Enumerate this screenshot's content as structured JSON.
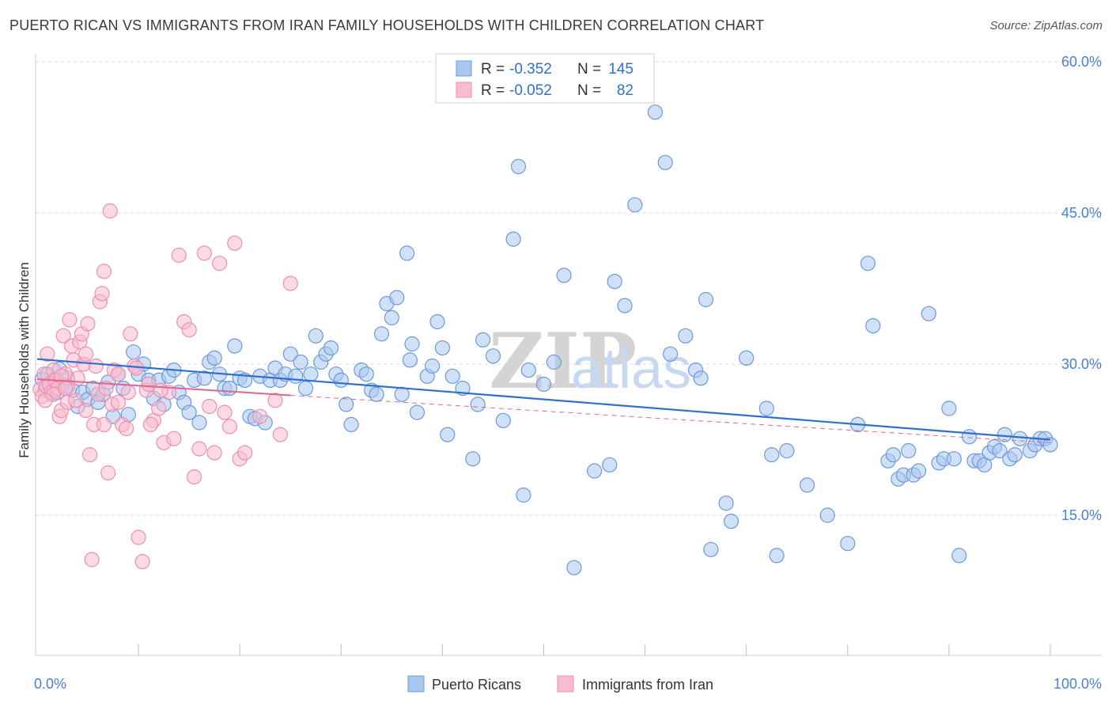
{
  "title": "PUERTO RICAN VS IMMIGRANTS FROM IRAN FAMILY HOUSEHOLDS WITH CHILDREN CORRELATION CHART",
  "source": "Source: ZipAtlas.com",
  "watermark": {
    "zip": "ZIP",
    "atlas": "atlas"
  },
  "legend_box": [
    {
      "r_label": "R =",
      "r_value": "-0.352",
      "n_label": "N =",
      "n_value": "145"
    },
    {
      "r_label": "R =",
      "r_value": "-0.052",
      "n_label": "N =",
      "n_value": "82"
    }
  ],
  "chart_data": {
    "type": "scatter",
    "ylabel": "Family Households with Children",
    "xlim": [
      0,
      100
    ],
    "ylim": [
      4,
      62
    ],
    "y_ticks": [
      15,
      30,
      45,
      60
    ],
    "y_tick_labels": [
      "15.0%",
      "30.0%",
      "45.0%",
      "60.0%"
    ],
    "x_tick_labels": [
      "0.0%",
      "100.0%"
    ],
    "x_minor_ticks": [
      10,
      20,
      30,
      40,
      50,
      60,
      70,
      80,
      90,
      100
    ],
    "grid": true,
    "legend_position": "bottom",
    "colors": {
      "blue_fill": "#a9c6ee",
      "blue_stroke": "#6d9ad8",
      "blue_line": "#2f6fd0",
      "pink_fill": "#f7bcd0",
      "pink_stroke": "#ec8fae",
      "pink_line": "#e0668f",
      "grid": "#d9d9d9",
      "tick_label": "#4a7fd4",
      "text": "#333333"
    },
    "series": [
      {
        "name": "Puerto Ricans",
        "color": "#a9c6ee",
        "trend": {
          "x": [
            0,
            100
          ],
          "y": [
            30.5,
            22.5
          ]
        },
        "points": [
          [
            0.5,
            28.5
          ],
          [
            0.8,
            27.5
          ],
          [
            1,
            29
          ],
          [
            1.2,
            28
          ],
          [
            1.5,
            27
          ],
          [
            1.8,
            28.5
          ],
          [
            2,
            27.2
          ],
          [
            2.2,
            29.5
          ],
          [
            2.5,
            28
          ],
          [
            2.8,
            27.8
          ],
          [
            3,
            28.6
          ],
          [
            3.5,
            27.4
          ],
          [
            4,
            25.8
          ],
          [
            4.5,
            27.2
          ],
          [
            5,
            26.5
          ],
          [
            5.5,
            27.6
          ],
          [
            6,
            26.2
          ],
          [
            6.5,
            27
          ],
          [
            7,
            28.2
          ],
          [
            7.5,
            24.8
          ],
          [
            8,
            29
          ],
          [
            8.5,
            27.6
          ],
          [
            9,
            25
          ],
          [
            9.5,
            31.2
          ],
          [
            10,
            29
          ],
          [
            10.5,
            30
          ],
          [
            11,
            28.4
          ],
          [
            11.5,
            26.6
          ],
          [
            12,
            28.4
          ],
          [
            12.5,
            26
          ],
          [
            13,
            28.8
          ],
          [
            13.5,
            29.4
          ],
          [
            14,
            27.2
          ],
          [
            14.5,
            26.2
          ],
          [
            15,
            25.2
          ],
          [
            15.5,
            28.4
          ],
          [
            16,
            24.2
          ],
          [
            16.5,
            28.6
          ],
          [
            17,
            30.2
          ],
          [
            17.5,
            30.6
          ],
          [
            18,
            29
          ],
          [
            18.5,
            27.6
          ],
          [
            19,
            27.6
          ],
          [
            19.5,
            31.8
          ],
          [
            20,
            28.6
          ],
          [
            20.5,
            28.4
          ],
          [
            21,
            24.8
          ],
          [
            21.5,
            24.6
          ],
          [
            22,
            28.8
          ],
          [
            22.5,
            24.2
          ],
          [
            23,
            28.4
          ],
          [
            23.5,
            29.6
          ],
          [
            24,
            28.4
          ],
          [
            24.5,
            29
          ],
          [
            25,
            31
          ],
          [
            25.5,
            28.8
          ],
          [
            26,
            30.2
          ],
          [
            26.5,
            27.6
          ],
          [
            27,
            29
          ],
          [
            27.5,
            32.8
          ],
          [
            28,
            30.2
          ],
          [
            28.5,
            31
          ],
          [
            29,
            31.6
          ],
          [
            29.5,
            29
          ],
          [
            30,
            28.4
          ],
          [
            30.5,
            26
          ],
          [
            31,
            24
          ],
          [
            32,
            29.4
          ],
          [
            32.5,
            29
          ],
          [
            33,
            27.4
          ],
          [
            33.5,
            27
          ],
          [
            34,
            33
          ],
          [
            34.5,
            36
          ],
          [
            35,
            34.6
          ],
          [
            35.5,
            36.6
          ],
          [
            36,
            27
          ],
          [
            36.5,
            41
          ],
          [
            37,
            32
          ],
          [
            37.5,
            25.2
          ],
          [
            38.5,
            28.8
          ],
          [
            39,
            29.8
          ],
          [
            39.5,
            34.2
          ],
          [
            40,
            31.6
          ],
          [
            41,
            28.8
          ],
          [
            42,
            27.6
          ],
          [
            43,
            20.6
          ],
          [
            43.5,
            26
          ],
          [
            44,
            32.4
          ],
          [
            45,
            30.8
          ],
          [
            46,
            24.4
          ],
          [
            47,
            42.4
          ],
          [
            47.5,
            49.6
          ],
          [
            48,
            17
          ],
          [
            48.5,
            29.4
          ],
          [
            51,
            30.2
          ],
          [
            53,
            9.8
          ],
          [
            55,
            19.4
          ],
          [
            56.5,
            20
          ],
          [
            58,
            35.8
          ],
          [
            59,
            45.8
          ],
          [
            61,
            55
          ],
          [
            62,
            50
          ],
          [
            65,
            29.4
          ],
          [
            65.5,
            28.6
          ],
          [
            66,
            36.4
          ],
          [
            66.5,
            11.6
          ],
          [
            68,
            16.2
          ],
          [
            68.5,
            14.4
          ],
          [
            72,
            25.6
          ],
          [
            72.5,
            21
          ],
          [
            73,
            11
          ],
          [
            74,
            21.4
          ],
          [
            76,
            18
          ],
          [
            78,
            15
          ],
          [
            80,
            12.2
          ],
          [
            81,
            24
          ],
          [
            82,
            40
          ],
          [
            82.5,
            33.8
          ],
          [
            84,
            20.4
          ],
          [
            84.5,
            21
          ],
          [
            85,
            18.6
          ],
          [
            85.5,
            19
          ],
          [
            86,
            21.4
          ],
          [
            86.5,
            19
          ],
          [
            87,
            19.4
          ],
          [
            88,
            35
          ],
          [
            89,
            20.2
          ],
          [
            89.5,
            20.6
          ],
          [
            90,
            25.6
          ],
          [
            90.5,
            20.6
          ],
          [
            91,
            11
          ],
          [
            92,
            22.8
          ],
          [
            92.5,
            20.4
          ],
          [
            93,
            20.4
          ],
          [
            93.5,
            20
          ],
          [
            94,
            21.2
          ],
          [
            94.5,
            21.8
          ],
          [
            95,
            21.4
          ],
          [
            95.5,
            23
          ],
          [
            96,
            20.6
          ],
          [
            96.5,
            21
          ],
          [
            97,
            22.6
          ],
          [
            98,
            21.4
          ],
          [
            98.5,
            22
          ],
          [
            99,
            22.6
          ],
          [
            99.5,
            22.6
          ],
          [
            100,
            22
          ],
          [
            52,
            38.8
          ],
          [
            57,
            38.2
          ],
          [
            64,
            32.8
          ],
          [
            70,
            30.6
          ],
          [
            50,
            28
          ],
          [
            40.5,
            23
          ],
          [
            62.5,
            31
          ],
          [
            36.8,
            30.4
          ]
        ]
      },
      {
        "name": "Immigrants from Iran",
        "color": "#f7bcd0",
        "trend": {
          "x": [
            0,
            25
          ],
          "y": [
            28.5,
            26.9
          ]
        },
        "trend_ext": {
          "x": [
            25,
            100
          ],
          "y": [
            26.9,
            22.2
          ]
        },
        "points": [
          [
            0.3,
            27.5
          ],
          [
            0.5,
            26.8
          ],
          [
            0.7,
            29
          ],
          [
            0.9,
            27.8
          ],
          [
            1,
            31
          ],
          [
            1.2,
            28
          ],
          [
            1.4,
            27.2
          ],
          [
            1.6,
            29.4
          ],
          [
            1.8,
            28.4
          ],
          [
            2,
            27.6
          ],
          [
            2.2,
            24.8
          ],
          [
            2.4,
            25.4
          ],
          [
            2.6,
            32.8
          ],
          [
            2.8,
            29
          ],
          [
            3,
            26.2
          ],
          [
            3.2,
            34.4
          ],
          [
            3.4,
            31.8
          ],
          [
            3.6,
            30.4
          ],
          [
            3.8,
            26.4
          ],
          [
            4,
            28.6
          ],
          [
            4.2,
            32.2
          ],
          [
            4.4,
            33
          ],
          [
            4.6,
            30
          ],
          [
            4.8,
            31
          ],
          [
            5,
            34
          ],
          [
            5.2,
            21
          ],
          [
            5.4,
            10.6
          ],
          [
            5.6,
            24
          ],
          [
            5.8,
            29.8
          ],
          [
            6,
            27
          ],
          [
            6.2,
            36.2
          ],
          [
            6.4,
            37
          ],
          [
            6.6,
            39.2
          ],
          [
            6.8,
            27.6
          ],
          [
            7,
            19.2
          ],
          [
            7.2,
            45.2
          ],
          [
            7.4,
            26
          ],
          [
            7.6,
            29.4
          ],
          [
            8,
            26.2
          ],
          [
            8.4,
            24
          ],
          [
            8.8,
            23.6
          ],
          [
            9.2,
            33
          ],
          [
            9.6,
            29.8
          ],
          [
            10,
            12.8
          ],
          [
            10.4,
            10.4
          ],
          [
            10.8,
            27.4
          ],
          [
            11,
            28
          ],
          [
            11.5,
            24.4
          ],
          [
            12,
            25.6
          ],
          [
            12.5,
            22.2
          ],
          [
            13,
            27.2
          ],
          [
            13.5,
            22.6
          ],
          [
            14,
            40.8
          ],
          [
            14.5,
            34.2
          ],
          [
            15,
            33.4
          ],
          [
            15.5,
            18.8
          ],
          [
            16,
            21.6
          ],
          [
            16.5,
            41
          ],
          [
            17,
            25.8
          ],
          [
            17.5,
            21.2
          ],
          [
            18,
            40
          ],
          [
            18.5,
            25.2
          ],
          [
            19,
            23.8
          ],
          [
            19.5,
            42
          ],
          [
            20,
            20.6
          ],
          [
            20.5,
            21.2
          ],
          [
            22,
            24.8
          ],
          [
            23.5,
            26.4
          ],
          [
            24,
            23
          ],
          [
            25,
            38
          ],
          [
            3,
            27.8
          ],
          [
            2.4,
            28.8
          ],
          [
            4.8,
            25.4
          ],
          [
            9,
            27.2
          ],
          [
            6.6,
            24
          ],
          [
            8,
            29
          ],
          [
            12.2,
            27.4
          ],
          [
            1.6,
            27
          ],
          [
            0.8,
            26.4
          ],
          [
            11.2,
            24
          ],
          [
            9.8,
            29.6
          ],
          [
            2.8,
            27.6
          ]
        ]
      }
    ]
  }
}
